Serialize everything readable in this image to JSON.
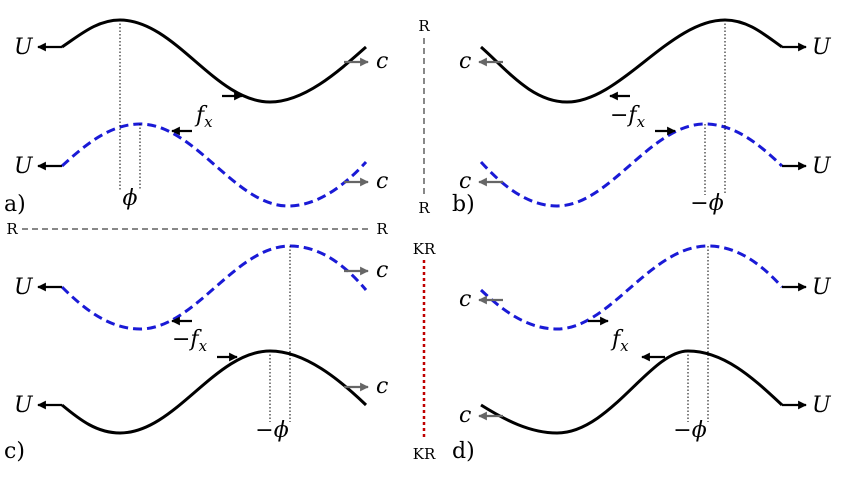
{
  "colors": {
    "solid_wave": "#000000",
    "dashed_wave": "#1a1ad6",
    "grey_arrow": "#666666",
    "dark_arrow": "#000000",
    "r_line": "#888888",
    "kr_line": "#c00000"
  },
  "labels": {
    "U": "U",
    "c": "c",
    "R": "R",
    "KR": "KR"
  },
  "panels": {
    "a": {
      "label": "a)",
      "force": "f",
      "force_sub": "x",
      "phase": "ϕ"
    },
    "b": {
      "label": "b)",
      "force": "−f",
      "force_sub": "x",
      "phase": "−ϕ"
    },
    "c": {
      "label": "c)",
      "force": "−f",
      "force_sub": "x",
      "phase": "−ϕ"
    },
    "d": {
      "label": "d)",
      "force": "f",
      "force_sub": "x",
      "phase": "−ϕ"
    }
  }
}
